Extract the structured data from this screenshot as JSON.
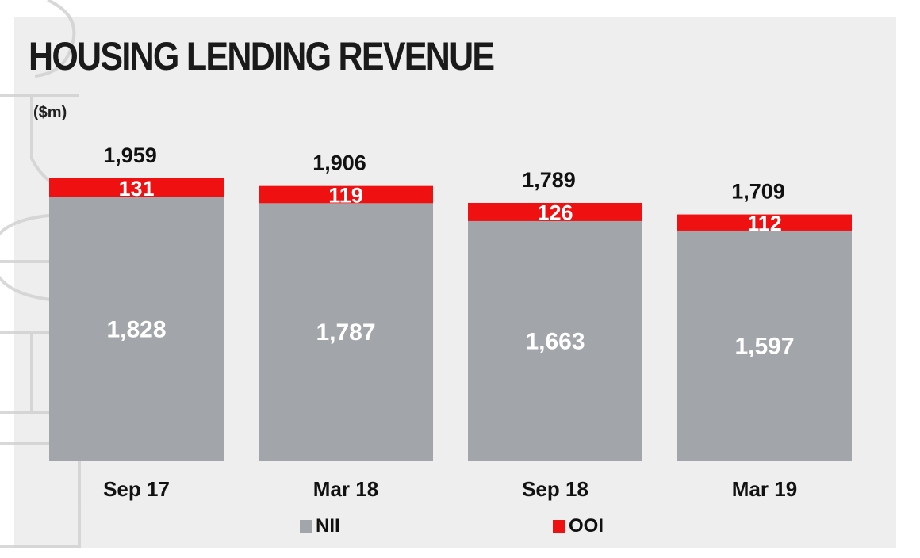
{
  "title": "HOUSING LENDING REVENUE",
  "unit": "($m)",
  "colors": {
    "nii": "#a2a6aa",
    "ooi": "#ef1111"
  },
  "chart_data": {
    "type": "bar",
    "stacked": true,
    "categories": [
      "Sep 17",
      "Mar 18",
      "Sep 18",
      "Mar 19"
    ],
    "totals": [
      "1,959",
      "1,906",
      "1,789",
      "1,709"
    ],
    "series": [
      {
        "name": "NII",
        "values": [
          1828,
          1787,
          1663,
          1597
        ],
        "labels": [
          "1,828",
          "1,787",
          "1,663",
          "1,597"
        ]
      },
      {
        "name": "OOI",
        "values": [
          131,
          119,
          126,
          112
        ],
        "labels": [
          "131",
          "119",
          "126",
          "112"
        ]
      }
    ],
    "ylim": [
      0,
      1959
    ],
    "legend_position": "bottom",
    "grid": false
  },
  "legend": [
    {
      "label": "NII",
      "color": "#a2a6aa"
    },
    {
      "label": "OOI",
      "color": "#ef1111"
    }
  ]
}
